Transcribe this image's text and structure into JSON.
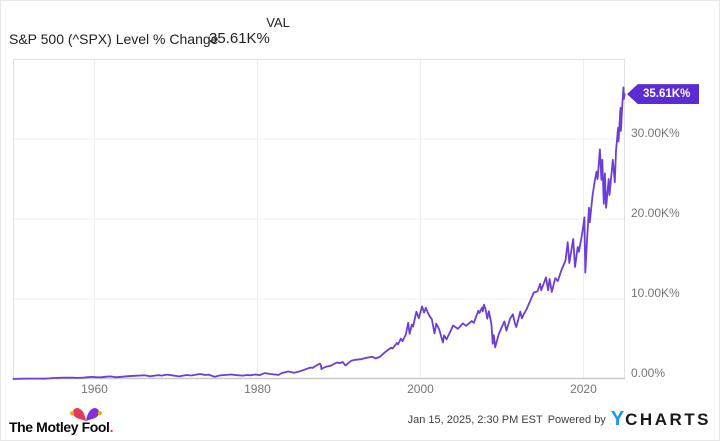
{
  "header": {
    "title": "S&P 500 (^SPX) Level % Change",
    "column_label": "VAL",
    "value": "35.61K%"
  },
  "chart_data": {
    "type": "line",
    "title": "S&P 500 (^SPX) Level % Change",
    "series_name": "S&P 500 (^SPX) Level % Change",
    "x_unit": "year",
    "y_unit": "percent change (K% = thousand percent)",
    "x_domain": [
      1950,
      2025.1
    ],
    "y_domain": [
      0,
      40
    ],
    "grid": true,
    "legend": "none",
    "line_color": "#6c3dd8",
    "tag_color": "#5b2bd5",
    "last_value_label": "35.61K%",
    "y_ticks": [
      {
        "value": 30,
        "label": "30.00K%"
      },
      {
        "value": 20,
        "label": "20.00K%"
      },
      {
        "value": 10,
        "label": "10.00K%"
      },
      {
        "value": 0,
        "label": "0.00%"
      }
    ],
    "x_ticks": [
      {
        "value": 1960,
        "label": "1960"
      },
      {
        "value": 1980,
        "label": "1980"
      },
      {
        "value": 2000,
        "label": "2000"
      },
      {
        "value": 2020,
        "label": "2020"
      }
    ],
    "points": [
      [
        1950.05,
        0.0
      ],
      [
        1950.6,
        0.015
      ],
      [
        1951.2,
        0.032
      ],
      [
        1952.0,
        0.045
      ],
      [
        1952.8,
        0.052
      ],
      [
        1953.3,
        0.048
      ],
      [
        1953.75,
        0.038
      ],
      [
        1954.4,
        0.08
      ],
      [
        1955.0,
        0.12
      ],
      [
        1955.7,
        0.145
      ],
      [
        1956.3,
        0.175
      ],
      [
        1956.8,
        0.16
      ],
      [
        1957.3,
        0.17
      ],
      [
        1957.85,
        0.132
      ],
      [
        1958.6,
        0.18
      ],
      [
        1959.2,
        0.23
      ],
      [
        1959.65,
        0.26
      ],
      [
        1960.2,
        0.23
      ],
      [
        1960.85,
        0.215
      ],
      [
        1961.4,
        0.29
      ],
      [
        1961.95,
        0.33
      ],
      [
        1962.45,
        0.25
      ],
      [
        1962.6,
        0.215
      ],
      [
        1963.3,
        0.28
      ],
      [
        1964.1,
        0.35
      ],
      [
        1964.9,
        0.4
      ],
      [
        1965.7,
        0.44
      ],
      [
        1966.1,
        0.465
      ],
      [
        1966.8,
        0.34
      ],
      [
        1967.6,
        0.45
      ],
      [
        1968.0,
        0.47
      ],
      [
        1968.25,
        0.43
      ],
      [
        1968.9,
        0.55
      ],
      [
        1969.5,
        0.46
      ],
      [
        1970.4,
        0.32
      ],
      [
        1971.3,
        0.5
      ],
      [
        1971.85,
        0.44
      ],
      [
        1972.95,
        0.62
      ],
      [
        1973.6,
        0.5
      ],
      [
        1974.0,
        0.55
      ],
      [
        1974.75,
        0.27
      ],
      [
        1975.5,
        0.46
      ],
      [
        1976.0,
        0.5
      ],
      [
        1976.75,
        0.56
      ],
      [
        1977.5,
        0.48
      ],
      [
        1978.2,
        0.42
      ],
      [
        1978.7,
        0.5
      ],
      [
        1979.1,
        0.46
      ],
      [
        1979.8,
        0.56
      ],
      [
        1980.25,
        0.48
      ],
      [
        1980.9,
        0.74
      ],
      [
        1981.6,
        0.62
      ],
      [
        1982.3,
        0.55
      ],
      [
        1982.6,
        0.51
      ],
      [
        1983.0,
        0.75
      ],
      [
        1983.8,
        0.94
      ],
      [
        1984.5,
        0.79
      ],
      [
        1985.0,
        0.9
      ],
      [
        1985.6,
        1.1
      ],
      [
        1986.2,
        1.32
      ],
      [
        1986.55,
        1.44
      ],
      [
        1986.75,
        1.38
      ],
      [
        1987.0,
        1.55
      ],
      [
        1987.65,
        1.92
      ],
      [
        1987.8,
        1.7
      ],
      [
        1987.85,
        1.24
      ],
      [
        1988.1,
        1.4
      ],
      [
        1988.5,
        1.56
      ],
      [
        1989.0,
        1.66
      ],
      [
        1989.75,
        2.06
      ],
      [
        1990.1,
        1.98
      ],
      [
        1990.45,
        2.14
      ],
      [
        1990.8,
        1.67
      ],
      [
        1991.1,
        1.95
      ],
      [
        1991.5,
        2.27
      ],
      [
        1992.0,
        2.4
      ],
      [
        1992.7,
        2.47
      ],
      [
        1993.4,
        2.65
      ],
      [
        1994.1,
        2.79
      ],
      [
        1994.5,
        2.56
      ],
      [
        1995.0,
        2.76
      ],
      [
        1995.6,
        3.3
      ],
      [
        1996.0,
        3.62
      ],
      [
        1996.4,
        3.92
      ],
      [
        1996.6,
        3.82
      ],
      [
        1997.1,
        4.5
      ],
      [
        1997.25,
        4.32
      ],
      [
        1997.6,
        5.05
      ],
      [
        1997.8,
        4.72
      ],
      [
        1998.2,
        5.55
      ],
      [
        1998.5,
        7.02
      ],
      [
        1998.67,
        5.64
      ],
      [
        1998.95,
        6.8
      ],
      [
        1999.1,
        6.55
      ],
      [
        1999.5,
        8.41
      ],
      [
        1999.8,
        7.6
      ],
      [
        2000.2,
        9.07
      ],
      [
        2000.45,
        8.3
      ],
      [
        2000.65,
        8.9
      ],
      [
        2000.95,
        8.2
      ],
      [
        2001.1,
        7.9
      ],
      [
        2001.4,
        7.45
      ],
      [
        2001.72,
        5.7
      ],
      [
        2001.95,
        6.93
      ],
      [
        2002.3,
        6.2
      ],
      [
        2002.75,
        4.56
      ],
      [
        2002.9,
        5.45
      ],
      [
        2003.2,
        4.95
      ],
      [
        2003.7,
        6.0
      ],
      [
        2004.0,
        6.69
      ],
      [
        2004.6,
        6.28
      ],
      [
        2005.2,
        6.95
      ],
      [
        2005.6,
        6.65
      ],
      [
        2006.3,
        7.25
      ],
      [
        2006.55,
        7.02
      ],
      [
        2007.1,
        8.53
      ],
      [
        2007.25,
        8.25
      ],
      [
        2007.55,
        8.92
      ],
      [
        2007.65,
        8.45
      ],
      [
        2007.78,
        9.29
      ],
      [
        2008.0,
        8.7
      ],
      [
        2008.2,
        7.54
      ],
      [
        2008.4,
        8.46
      ],
      [
        2008.7,
        6.9
      ],
      [
        2008.87,
        4.41
      ],
      [
        2009.0,
        5.49
      ],
      [
        2009.17,
        3.96
      ],
      [
        2009.6,
        5.6
      ],
      [
        2010.05,
        6.65
      ],
      [
        2010.3,
        7.2
      ],
      [
        2010.55,
        6.04
      ],
      [
        2011.0,
        7.55
      ],
      [
        2011.35,
        8.09
      ],
      [
        2011.6,
        6.9
      ],
      [
        2011.76,
        6.5
      ],
      [
        2012.25,
        8.42
      ],
      [
        2012.45,
        7.57
      ],
      [
        2012.7,
        8.15
      ],
      [
        2013.0,
        8.68
      ],
      [
        2013.5,
        9.85
      ],
      [
        2013.9,
        10.8
      ],
      [
        2014.35,
        10.95
      ],
      [
        2014.7,
        11.9
      ],
      [
        2014.82,
        11.1
      ],
      [
        2015.4,
        12.7
      ],
      [
        2015.66,
        11.1
      ],
      [
        2015.85,
        12.5
      ],
      [
        2016.12,
        10.9
      ],
      [
        2016.55,
        12.6
      ],
      [
        2016.85,
        12.25
      ],
      [
        2017.3,
        13.6
      ],
      [
        2017.8,
        14.8
      ],
      [
        2018.07,
        17.1
      ],
      [
        2018.26,
        14.5
      ],
      [
        2018.74,
        17.5
      ],
      [
        2018.96,
        14.0
      ],
      [
        2019.3,
        16.5
      ],
      [
        2019.44,
        15.9
      ],
      [
        2019.9,
        18.5
      ],
      [
        2020.12,
        20.2
      ],
      [
        2020.23,
        13.3
      ],
      [
        2020.45,
        17.5
      ],
      [
        2020.68,
        21.4
      ],
      [
        2020.78,
        19.6
      ],
      [
        2021.1,
        22.8
      ],
      [
        2021.35,
        24.5
      ],
      [
        2021.6,
        25.9
      ],
      [
        2021.74,
        25.0
      ],
      [
        2022.02,
        28.7
      ],
      [
        2022.2,
        24.9
      ],
      [
        2022.32,
        27.4
      ],
      [
        2022.5,
        21.9
      ],
      [
        2022.63,
        25.7
      ],
      [
        2022.78,
        21.4
      ],
      [
        2023.1,
        25.0
      ],
      [
        2023.2,
        23.0
      ],
      [
        2023.6,
        27.4
      ],
      [
        2023.85,
        24.6
      ],
      [
        2024.0,
        28.5
      ],
      [
        2024.25,
        31.4
      ],
      [
        2024.3,
        29.7
      ],
      [
        2024.55,
        33.9
      ],
      [
        2024.6,
        31.0
      ],
      [
        2024.78,
        34.5
      ],
      [
        2024.92,
        36.45
      ],
      [
        2024.97,
        35.0
      ],
      [
        2025.05,
        35.61
      ]
    ]
  },
  "footer": {
    "motley_fool_text": "The Motley Fool",
    "motley_fool_dot": ".",
    "timestamp": "Jan 15, 2025, 2:30 PM EST",
    "powered_by": "Powered by",
    "ycharts_y": "Y",
    "ycharts_charts": "CHARTS"
  },
  "icons": {
    "jester_hat": "jester-hat-icon",
    "ycharts_mark": "ycharts-y-mark"
  },
  "colors": {
    "line": "#6c3dd8",
    "tag_background": "#5b2bd5",
    "grid": "#ececec",
    "plot_border": "#e0e0e0",
    "axis_bottom": "#c9c9c9",
    "tick_text": "#75757a",
    "header_text": "#202124",
    "ycharts_blue": "#1e96e8",
    "mf_hat_left": "#e6365c",
    "mf_hat_right": "#8430d8",
    "mf_hat_ball": "#f7a600"
  }
}
